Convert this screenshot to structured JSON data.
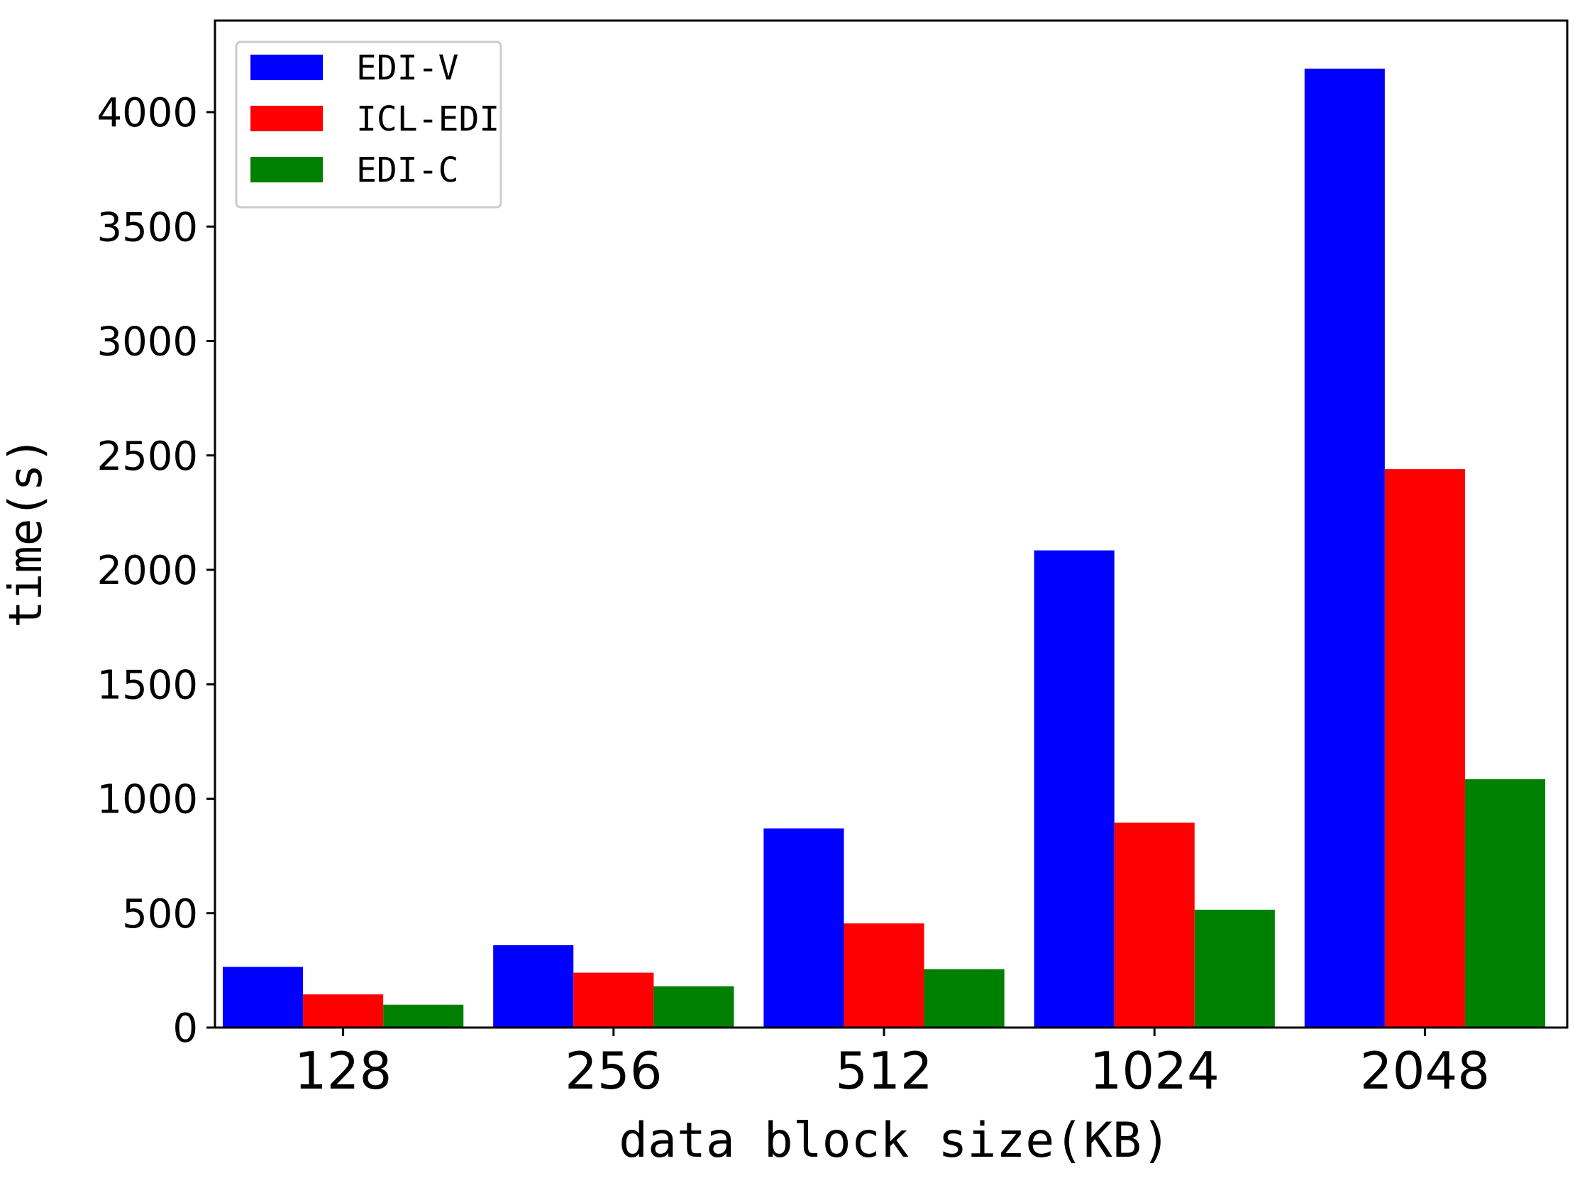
{
  "chart_data": {
    "type": "bar",
    "categories": [
      "128",
      "256",
      "512",
      "1024",
      "2048"
    ],
    "series": [
      {
        "name": "EDI-V",
        "color": "#0000ff",
        "values": [
          265,
          360,
          870,
          2085,
          4190
        ]
      },
      {
        "name": "ICL-EDI",
        "color": "#ff0000",
        "values": [
          145,
          240,
          455,
          895,
          2440
        ]
      },
      {
        "name": "EDI-C",
        "color": "#008000",
        "values": [
          100,
          180,
          255,
          515,
          1085
        ]
      }
    ],
    "xlabel": "data block size(KB)",
    "ylabel": "time(s)",
    "ylim": [
      0,
      4400
    ],
    "yticks": [
      0,
      500,
      1000,
      1500,
      2000,
      2500,
      3000,
      3500,
      4000
    ],
    "grid": false,
    "legend_position": "top-left"
  }
}
